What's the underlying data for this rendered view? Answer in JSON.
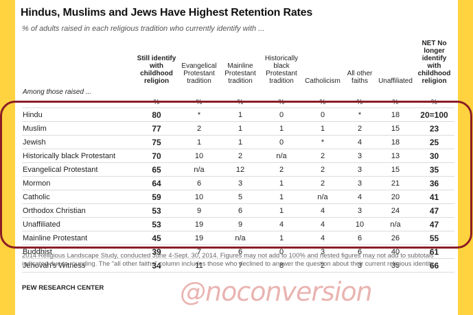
{
  "title": "Hindus, Muslims and Jews Have Highest Retention Rates",
  "subtitle": "% of adults raised in each religious tradition who currently identify with ...",
  "headers": [
    "",
    "Still identify with childhood religion",
    "Evangelical Protestant tradition",
    "Mainline Protestant tradition",
    "Historically black Protestant tradition",
    "Catholicism",
    "All other faiths",
    "Unaffiliated",
    "NET No longer identify with childhood religion"
  ],
  "among_label": "Among those raised ...",
  "pct_row": [
    "%",
    "%",
    "%",
    "%",
    "%",
    "%",
    "%",
    "%"
  ],
  "rows": [
    {
      "label": "Hindu",
      "values": [
        "80",
        "*",
        "1",
        "0",
        "0",
        "*",
        "18",
        "20=100"
      ]
    },
    {
      "label": "Muslim",
      "values": [
        "77",
        "2",
        "1",
        "1",
        "1",
        "2",
        "15",
        "23"
      ]
    },
    {
      "label": "Jewish",
      "values": [
        "75",
        "1",
        "1",
        "0",
        "*",
        "4",
        "18",
        "25"
      ]
    },
    {
      "label": "Historically black Protestant",
      "values": [
        "70",
        "10",
        "2",
        "n/a",
        "2",
        "3",
        "13",
        "30"
      ]
    },
    {
      "label": "Evangelical Protestant",
      "values": [
        "65",
        "n/a",
        "12",
        "2",
        "2",
        "3",
        "15",
        "35"
      ]
    },
    {
      "label": "Mormon",
      "values": [
        "64",
        "6",
        "3",
        "1",
        "2",
        "3",
        "21",
        "36"
      ]
    },
    {
      "label": "Catholic",
      "values": [
        "59",
        "10",
        "5",
        "1",
        "n/a",
        "4",
        "20",
        "41"
      ]
    },
    {
      "label": "Orthodox Christian",
      "values": [
        "53",
        "9",
        "6",
        "1",
        "4",
        "3",
        "24",
        "47"
      ]
    },
    {
      "label": "Unaffiliated",
      "values": [
        "53",
        "19",
        "9",
        "4",
        "4",
        "10",
        "n/a",
        "47"
      ]
    },
    {
      "label": "Mainline Protestant",
      "values": [
        "45",
        "19",
        "n/a",
        "1",
        "4",
        "6",
        "26",
        "55"
      ]
    },
    {
      "label": "Buddhist",
      "values": [
        "39",
        "7",
        "6",
        "0",
        "3",
        "6",
        "40",
        "61"
      ]
    },
    {
      "label": "Jehovah's Witness",
      "values": [
        "34",
        "11",
        "7",
        "8",
        "2",
        "3",
        "35",
        "66"
      ]
    }
  ],
  "footnote": "2014 Religious Landscape Study, conducted June 4-Sept. 30, 2014. Figures may not add to 100% and nested figures may not add to subtotals indicated due to rounding. The \"all other faiths\" column includes those who declined to answer the question about their current religious identity.",
  "source": "PEW RESEARCH CENTER",
  "watermark": "@noconversion",
  "colors": {
    "background": "#ffd23f",
    "highlight_oval": "#8b1c25",
    "watermark": "#e6a7a4"
  }
}
